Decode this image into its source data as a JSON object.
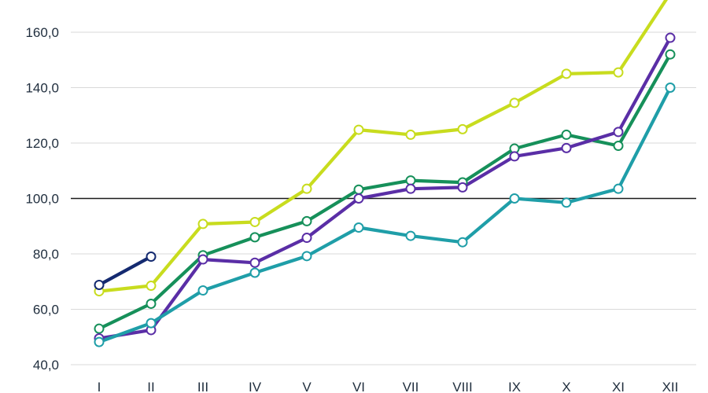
{
  "chart_data": {
    "type": "line",
    "title": "",
    "xlabel": "",
    "ylabel": "",
    "categories": [
      "I",
      "II",
      "III",
      "IV",
      "V",
      "VI",
      "VII",
      "VIII",
      "IX",
      "X",
      "XI",
      "XII"
    ],
    "yticks": [
      "40,0",
      "60,0",
      "80,0",
      "100,0",
      "120,0",
      "140,0",
      "160,0"
    ],
    "ytick_values": [
      40,
      60,
      80,
      100,
      120,
      140,
      160
    ],
    "ylim": [
      40,
      170
    ],
    "reference_line": 100,
    "grid": true,
    "series": [
      {
        "color": "#c8dc1e",
        "values": [
          66.5,
          68.5,
          90.8,
          91.5,
          103.5,
          124.8,
          123.0,
          125.0,
          134.5,
          145.0,
          145.5,
          174.0
        ]
      },
      {
        "color": "#16905a",
        "values": [
          53.0,
          62.0,
          79.5,
          86.0,
          91.8,
          103.2,
          106.5,
          105.8,
          118.0,
          123.0,
          119.0,
          152.0
        ]
      },
      {
        "color": "#5a2ea6",
        "values": [
          49.5,
          52.5,
          78.0,
          76.8,
          85.8,
          100.0,
          103.5,
          104.0,
          115.2,
          118.2,
          124.0,
          158.0
        ]
      },
      {
        "color": "#1f9ea8",
        "values": [
          48.2,
          55.0,
          66.8,
          73.2,
          79.2,
          89.5,
          86.5,
          84.2,
          100.0,
          98.5,
          103.5,
          140.0
        ]
      },
      {
        "color": "#142a70",
        "values": [
          68.8,
          79.0,
          null,
          null,
          null,
          null,
          null,
          null,
          null,
          null,
          null,
          null
        ]
      }
    ]
  }
}
